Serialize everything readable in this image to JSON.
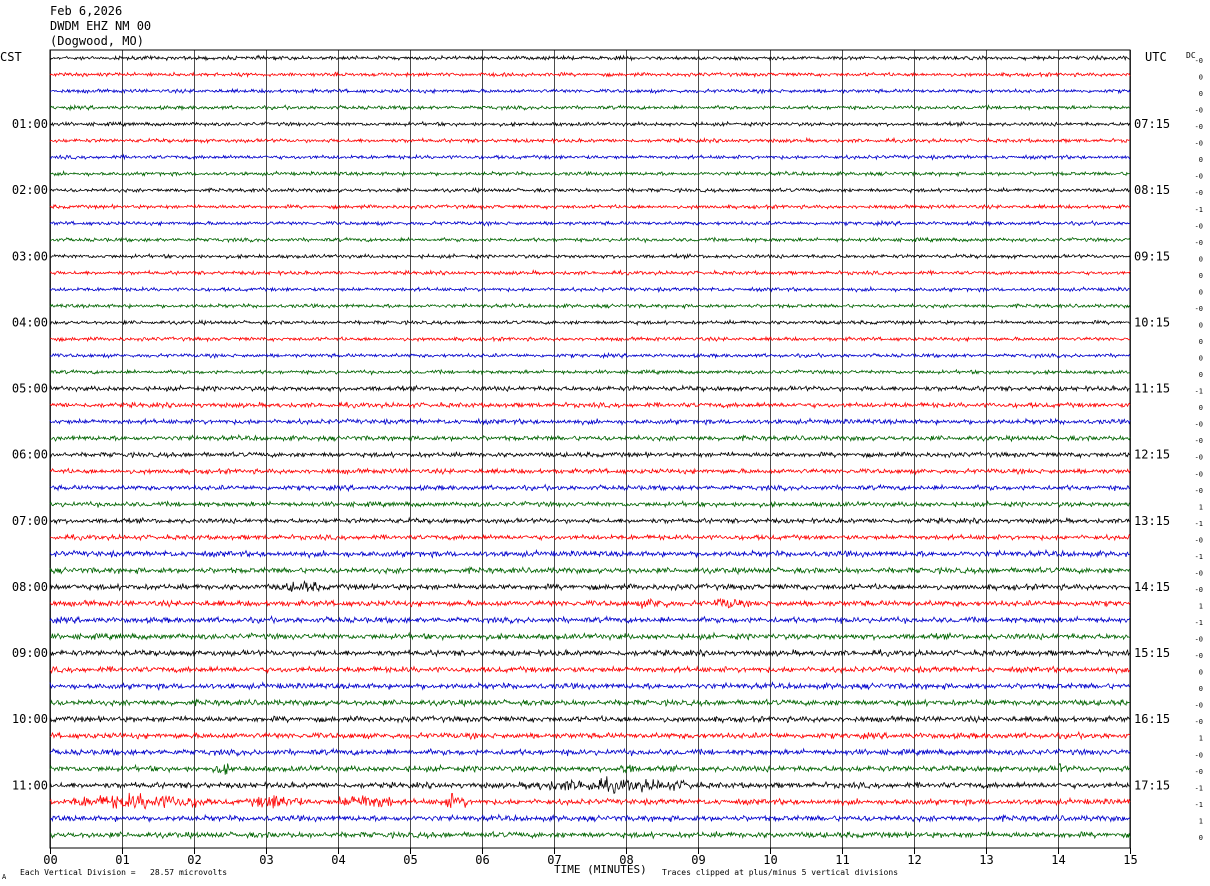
{
  "header": {
    "date": "Feb 6,2026",
    "station": "DWDM EHZ NM 00",
    "location": "(Dogwood, MO)"
  },
  "left_tz": "CST",
  "right_tz": "UTC",
  "dc_label": "DC",
  "footer": {
    "scale_note": "Each Vertical Division =   28.57 microvolts",
    "xlabel": "TIME (MINUTES)",
    "clip_note": "Traces clipped at plus/minus 5 vertical divisions",
    "corner_mark": "A"
  },
  "colors": {
    "black": "#000000",
    "red": "#ff0000",
    "blue": "#0000cc",
    "green": "#006400",
    "grid": "#000000"
  },
  "chart_data": {
    "type": "line",
    "title": "",
    "xlabel": "TIME (MINUTES)",
    "x_range": [
      0,
      15
    ],
    "x_ticks": [
      "00",
      "01",
      "02",
      "03",
      "04",
      "05",
      "06",
      "07",
      "08",
      "09",
      "10",
      "11",
      "12",
      "13",
      "14",
      "15"
    ],
    "trace_colors": [
      "black",
      "red",
      "blue",
      "green"
    ],
    "left_time_labels": [
      "01:00",
      "02:00",
      "03:00",
      "04:00",
      "05:00",
      "06:00",
      "07:00",
      "08:00",
      "09:00",
      "10:00",
      "11:00"
    ],
    "right_time_labels": [
      "07:15",
      "08:15",
      "09:15",
      "10:15",
      "11:15",
      "12:15",
      "13:15",
      "14:15",
      "15:15",
      "16:15",
      "17:15"
    ],
    "dc_offsets": [
      "-0",
      "0",
      "0",
      "-0",
      "-0",
      "-0",
      "0",
      "-0",
      "-0",
      "-1",
      "-0",
      "-0",
      "0",
      "0",
      "0",
      "-0",
      "0",
      "0",
      "0",
      "0",
      "-1",
      "0",
      "-0",
      "-0",
      "-0",
      "-0",
      "-0",
      "1",
      "-1",
      "-0",
      "-1",
      "-0",
      "-0",
      "1",
      "-1",
      "-0",
      "-0",
      "0",
      "0",
      "-0",
      "-0",
      "1",
      "-0",
      "-0",
      "-1",
      "-1",
      "1",
      "0"
    ],
    "rows": 48,
    "events": [
      {
        "row": 32,
        "minute_start": 3.2,
        "minute_end": 3.8,
        "amp": 2.5
      },
      {
        "row": 33,
        "minute_start": 8.2,
        "minute_end": 8.6,
        "amp": 2.5
      },
      {
        "row": 33,
        "minute_start": 9.2,
        "minute_end": 9.6,
        "amp": 2.5
      },
      {
        "row": 43,
        "minute_start": 2.3,
        "minute_end": 2.5,
        "amp": 3
      },
      {
        "row": 43,
        "minute_start": 7.9,
        "minute_end": 8.1,
        "amp": 3
      },
      {
        "row": 43,
        "minute_start": 14.0,
        "minute_end": 14.1,
        "amp": 4
      },
      {
        "row": 44,
        "minute_start": 6.6,
        "minute_end": 9.0,
        "amp": 3
      },
      {
        "row": 45,
        "minute_start": 0.3,
        "minute_end": 2.2,
        "amp": 4
      },
      {
        "row": 45,
        "minute_start": 2.8,
        "minute_end": 3.5,
        "amp": 4
      },
      {
        "row": 45,
        "minute_start": 4.0,
        "minute_end": 4.8,
        "amp": 4
      },
      {
        "row": 45,
        "minute_start": 5.4,
        "minute_end": 5.8,
        "amp": 4
      }
    ]
  }
}
